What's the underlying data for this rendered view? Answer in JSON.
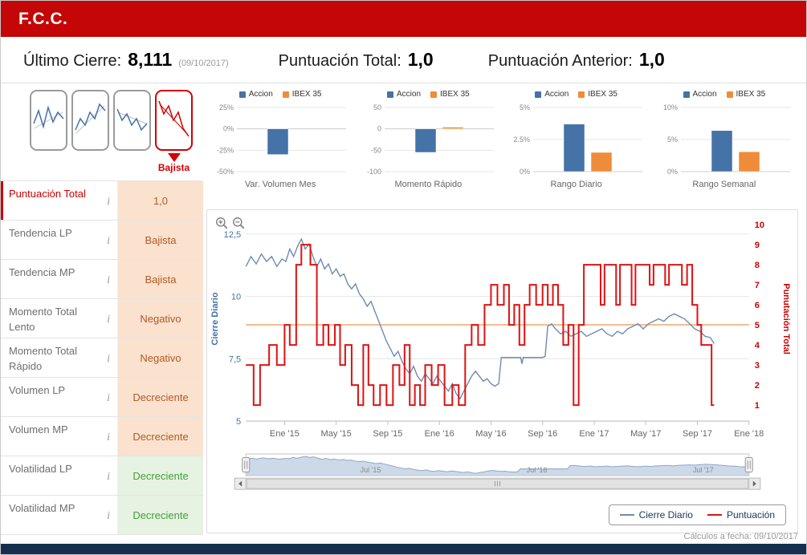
{
  "header": {
    "title": "F.C.C."
  },
  "summary": {
    "ultimo_cierre_label": "Último Cierre:",
    "ultimo_cierre_value": "8,111",
    "ultimo_cierre_date": "(09/10/2017)",
    "puntuacion_total_label": "Puntuación Total:",
    "puntuacion_total_value": "1,0",
    "puntuacion_anterior_label": "Puntuación Anterior:",
    "puntuacion_anterior_value": "1,0"
  },
  "trend": {
    "selected_label": "Bajista"
  },
  "icons": {
    "info": "i"
  },
  "indicators": [
    {
      "label": "Puntuación Total",
      "value": "1,0",
      "state": "negative",
      "accent": true
    },
    {
      "label": "Tendencia LP",
      "value": "Bajista",
      "state": "negative"
    },
    {
      "label": "Tendencia MP",
      "value": "Bajista",
      "state": "negative"
    },
    {
      "label": "Momento Total Lento",
      "value": "Negativo",
      "state": "negative"
    },
    {
      "label": "Momento Total Rápido",
      "value": "Negativo",
      "state": "negative"
    },
    {
      "label": "Volumen LP",
      "value": "Decreciente",
      "state": "negative"
    },
    {
      "label": "Volumen MP",
      "value": "Decreciente",
      "state": "negative"
    },
    {
      "label": "Volatilidad LP",
      "value": "Decreciente",
      "state": "positive"
    },
    {
      "label": "Volatilidad MP",
      "value": "Decreciente",
      "state": "positive"
    }
  ],
  "chart_data": [
    {
      "type": "bar",
      "title": "Var. Volumen Mes",
      "y_ticks": [
        "25%",
        "0%",
        "-25%",
        "-50%"
      ],
      "y_tick_values": [
        25,
        0,
        -25,
        -50
      ],
      "ylim": [
        -50,
        25
      ],
      "series": [
        {
          "name": "Accion",
          "value": -30,
          "color": "#4572a7"
        },
        {
          "name": "IBEX 35",
          "value": 0,
          "color": "#ef8c3a"
        }
      ]
    },
    {
      "type": "bar",
      "title": "Momento Rápido",
      "y_ticks": [
        "50",
        "0",
        "-50",
        "-100"
      ],
      "y_tick_values": [
        50,
        0,
        -50,
        -100
      ],
      "ylim": [
        -100,
        50
      ],
      "series": [
        {
          "name": "Accion",
          "value": -55,
          "color": "#4572a7"
        },
        {
          "name": "IBEX 35",
          "value": 4,
          "color": "#ef8c3a"
        }
      ]
    },
    {
      "type": "bar",
      "title": "Rango Diario",
      "y_ticks": [
        "5%",
        "2.5%",
        "0%"
      ],
      "y_tick_values": [
        5,
        2.5,
        0
      ],
      "ylim": [
        0,
        5
      ],
      "series": [
        {
          "name": "Accion",
          "value": 3.7,
          "color": "#4572a7"
        },
        {
          "name": "IBEX 35",
          "value": 1.5,
          "color": "#ef8c3a"
        }
      ]
    },
    {
      "type": "bar",
      "title": "Rango Semanal",
      "y_ticks": [
        "10%",
        "5%",
        "0%"
      ],
      "y_tick_values": [
        10,
        5,
        0
      ],
      "ylim": [
        0,
        10
      ],
      "series": [
        {
          "name": "Accion",
          "value": 6.4,
          "color": "#4572a7"
        },
        {
          "name": "IBEX 35",
          "value": 3.1,
          "color": "#ef8c3a"
        }
      ]
    },
    {
      "type": "line",
      "title": "Cierre Diario vs Puntuación",
      "x_unit": "months_since_Oct_2014",
      "x_range": [
        0,
        39
      ],
      "x_ticks": [
        "Ene '15",
        "May '15",
        "Sep '15",
        "Ene '16",
        "May '16",
        "Sep '16",
        "Ene '17",
        "May '17",
        "Sep '17",
        "Ene '18"
      ],
      "x_tick_months": [
        3,
        7,
        11,
        15,
        19,
        23,
        27,
        31,
        35,
        39
      ],
      "left_axis": {
        "title": "Cierre Diario",
        "ticks": [
          "5",
          "7,5",
          "10",
          "12,5"
        ],
        "tick_values": [
          5,
          7.5,
          10,
          12.5
        ],
        "range": [
          5,
          13.2
        ],
        "color": "#4572a7"
      },
      "right_axis": {
        "title": "Punutación Total",
        "ticks": [
          "1",
          "2",
          "3",
          "4",
          "5",
          "6",
          "7",
          "8",
          "9",
          "10"
        ],
        "tick_values": [
          1,
          2,
          3,
          4,
          5,
          6,
          7,
          8,
          9,
          10
        ],
        "range": [
          0.2,
          10.4
        ],
        "color": "#cc0000"
      },
      "reference_line": {
        "axis": "right",
        "value": 5,
        "color": "#f0a868"
      },
      "series": [
        {
          "name": "Cierre Diario",
          "axis": "left",
          "type": "line",
          "color": "#6d8cb0",
          "points": [
            [
              0,
              11.2
            ],
            [
              0.4,
              11.6
            ],
            [
              0.8,
              11.3
            ],
            [
              1.2,
              11.7
            ],
            [
              1.6,
              11.4
            ],
            [
              2,
              11.6
            ],
            [
              2.4,
              11.2
            ],
            [
              2.8,
              11.5
            ],
            [
              3.1,
              11.4
            ],
            [
              3.4,
              11.9
            ],
            [
              3.7,
              11.6
            ],
            [
              4,
              12.0
            ],
            [
              4.3,
              12.3
            ],
            [
              4.6,
              11.9
            ],
            [
              4.9,
              12.1
            ],
            [
              5.2,
              11.6
            ],
            [
              5.5,
              11.2
            ],
            [
              5.8,
              11.5
            ],
            [
              6.1,
              11.1
            ],
            [
              6.4,
              11.3
            ],
            [
              6.7,
              10.9
            ],
            [
              7,
              11.1
            ],
            [
              7.3,
              10.8
            ],
            [
              7.6,
              10.9
            ],
            [
              7.9,
              10.5
            ],
            [
              8.2,
              10.3
            ],
            [
              8.5,
              10.5
            ],
            [
              8.8,
              10.1
            ],
            [
              9.1,
              9.9
            ],
            [
              9.4,
              9.6
            ],
            [
              9.7,
              9.8
            ],
            [
              10,
              9.4
            ],
            [
              10.3,
              9.0
            ],
            [
              10.6,
              8.6
            ],
            [
              10.9,
              8.2
            ],
            [
              11.2,
              7.9
            ],
            [
              11.5,
              7.6
            ],
            [
              11.8,
              7.8
            ],
            [
              12.1,
              7.4
            ],
            [
              12.4,
              7.1
            ],
            [
              12.7,
              6.9
            ],
            [
              13,
              7.2
            ],
            [
              13.3,
              6.8
            ],
            [
              13.6,
              6.6
            ],
            [
              13.9,
              6.9
            ],
            [
              14.2,
              6.7
            ],
            [
              14.5,
              6.5
            ],
            [
              14.8,
              6.8
            ],
            [
              15.1,
              6.6
            ],
            [
              15.4,
              6.4
            ],
            [
              15.7,
              6.2
            ],
            [
              16,
              6.5
            ],
            [
              16.3,
              6.1
            ],
            [
              16.6,
              5.9
            ],
            [
              16.9,
              6.2
            ],
            [
              17.2,
              6.5
            ],
            [
              17.5,
              6.8
            ],
            [
              17.8,
              7.0
            ],
            [
              18.1,
              6.8
            ],
            [
              18.4,
              6.6
            ],
            [
              18.7,
              6.7
            ],
            [
              19,
              6.5
            ],
            [
              19.3,
              6.4
            ],
            [
              19.6,
              6.5
            ],
            [
              19.8,
              7.55
            ],
            [
              21.3,
              7.55
            ],
            [
              21.4,
              7.3
            ],
            [
              21.5,
              7.55
            ],
            [
              23,
              7.55
            ],
            [
              23.2,
              7.6
            ],
            [
              23.4,
              8.8
            ],
            [
              23.7,
              8.9
            ],
            [
              24,
              8.7
            ],
            [
              24.4,
              8.5
            ],
            [
              24.8,
              8.6
            ],
            [
              25.2,
              8.4
            ],
            [
              25.6,
              8.5
            ],
            [
              26,
              8.6
            ],
            [
              26.4,
              8.4
            ],
            [
              26.8,
              8.5
            ],
            [
              27.2,
              8.6
            ],
            [
              27.6,
              8.7
            ],
            [
              28,
              8.5
            ],
            [
              28.4,
              8.4
            ],
            [
              28.8,
              8.6
            ],
            [
              29.2,
              8.5
            ],
            [
              29.6,
              8.7
            ],
            [
              30,
              8.8
            ],
            [
              30.4,
              8.9
            ],
            [
              30.8,
              8.7
            ],
            [
              31.2,
              8.9
            ],
            [
              31.6,
              9.0
            ],
            [
              32,
              9.1
            ],
            [
              32.4,
              9.0
            ],
            [
              32.8,
              9.2
            ],
            [
              33.2,
              9.3
            ],
            [
              33.6,
              9.2
            ],
            [
              34,
              9.1
            ],
            [
              34.4,
              8.9
            ],
            [
              34.8,
              8.7
            ],
            [
              35.2,
              8.6
            ],
            [
              35.6,
              8.4
            ],
            [
              36,
              8.35
            ],
            [
              36.3,
              8.11
            ]
          ]
        },
        {
          "name": "Puntuación",
          "axis": "right",
          "type": "step",
          "color": "#e01212",
          "points": [
            [
              0,
              3
            ],
            [
              0.6,
              1
            ],
            [
              1.1,
              3
            ],
            [
              1.8,
              4
            ],
            [
              2.4,
              3
            ],
            [
              3,
              5
            ],
            [
              3.4,
              4
            ],
            [
              3.9,
              8
            ],
            [
              4.3,
              9
            ],
            [
              5,
              8
            ],
            [
              5.5,
              4
            ],
            [
              6,
              5
            ],
            [
              6.4,
              4
            ],
            [
              6.9,
              5
            ],
            [
              7.3,
              3
            ],
            [
              7.7,
              4
            ],
            [
              8.2,
              2
            ],
            [
              8.7,
              1
            ],
            [
              9.1,
              4
            ],
            [
              9.5,
              2
            ],
            [
              9.9,
              1
            ],
            [
              10.4,
              2
            ],
            [
              10.9,
              1
            ],
            [
              11.4,
              3
            ],
            [
              11.9,
              2
            ],
            [
              12.3,
              4
            ],
            [
              12.7,
              1
            ],
            [
              13.1,
              2
            ],
            [
              13.5,
              1
            ],
            [
              13.9,
              3
            ],
            [
              14.4,
              2
            ],
            [
              14.9,
              3
            ],
            [
              15.4,
              1
            ],
            [
              16,
              2
            ],
            [
              16.5,
              1
            ],
            [
              17,
              4
            ],
            [
              17.5,
              5
            ],
            [
              18,
              4
            ],
            [
              18.5,
              6
            ],
            [
              19,
              7
            ],
            [
              19.5,
              6
            ],
            [
              20,
              7
            ],
            [
              20.4,
              5
            ],
            [
              20.8,
              6
            ],
            [
              21.2,
              4
            ],
            [
              21.6,
              6
            ],
            [
              22,
              7
            ],
            [
              22.5,
              6
            ],
            [
              23,
              7
            ],
            [
              23.4,
              6
            ],
            [
              23.8,
              7
            ],
            [
              24.2,
              6
            ],
            [
              24.6,
              4
            ],
            [
              25,
              5
            ],
            [
              25.4,
              1
            ],
            [
              25.8,
              5
            ],
            [
              26.2,
              8
            ],
            [
              27.2,
              8
            ],
            [
              27.5,
              6
            ],
            [
              27.8,
              8
            ],
            [
              28.4,
              8
            ],
            [
              28.7,
              6
            ],
            [
              29,
              8
            ],
            [
              29.6,
              8
            ],
            [
              29.9,
              6
            ],
            [
              30.2,
              8
            ],
            [
              31,
              8
            ],
            [
              31.3,
              7
            ],
            [
              31.6,
              8
            ],
            [
              32.2,
              8
            ],
            [
              32.5,
              7
            ],
            [
              32.8,
              8
            ],
            [
              33.4,
              8
            ],
            [
              33.8,
              7
            ],
            [
              34.2,
              8
            ],
            [
              34.6,
              6
            ],
            [
              35,
              5
            ],
            [
              35.3,
              4
            ],
            [
              35.8,
              4
            ],
            [
              36.1,
              1
            ],
            [
              36.3,
              1
            ]
          ]
        }
      ],
      "navigator": {
        "labels": [
          "Jul '15",
          "Jul '16",
          "Jul '17"
        ],
        "label_months": [
          9,
          21,
          33
        ]
      }
    }
  ],
  "footer": {
    "note": "Cálculos a fecha: 09/10/2017"
  }
}
